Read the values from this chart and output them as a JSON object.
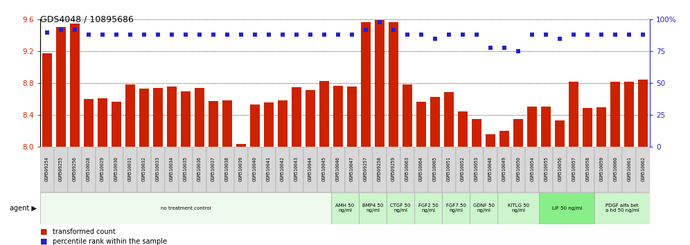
{
  "title": "GDS4048 / 10895686",
  "samples": [
    "GSM509254",
    "GSM509255",
    "GSM509256",
    "GSM510028",
    "GSM510029",
    "GSM510030",
    "GSM510031",
    "GSM510032",
    "GSM510033",
    "GSM510034",
    "GSM510035",
    "GSM510036",
    "GSM510037",
    "GSM510038",
    "GSM510039",
    "GSM510040",
    "GSM510041",
    "GSM510042",
    "GSM510043",
    "GSM510044",
    "GSM510045",
    "GSM510046",
    "GSM510047",
    "GSM509257",
    "GSM509258",
    "GSM509259",
    "GSM510063",
    "GSM510064",
    "GSM510065",
    "GSM510051",
    "GSM510052",
    "GSM510053",
    "GSM510048",
    "GSM510049",
    "GSM510050",
    "GSM510054",
    "GSM510055",
    "GSM510056",
    "GSM510057",
    "GSM510058",
    "GSM510059",
    "GSM510060",
    "GSM510061",
    "GSM510062"
  ],
  "bar_values": [
    9.18,
    9.51,
    9.55,
    8.6,
    8.61,
    8.57,
    8.79,
    8.73,
    8.74,
    8.76,
    8.7,
    8.74,
    8.58,
    8.59,
    8.04,
    8.53,
    8.56,
    8.59,
    8.75,
    8.72,
    8.83,
    8.77,
    8.76,
    9.57,
    9.59,
    9.57,
    8.79,
    8.57,
    8.63,
    8.69,
    8.45,
    8.35,
    8.16,
    8.2,
    8.35,
    8.51,
    8.51,
    8.33,
    8.82,
    8.49,
    8.5,
    8.82,
    8.82,
    8.85
  ],
  "percentile_values": [
    90,
    92,
    92,
    88,
    88,
    88,
    88,
    88,
    88,
    88,
    88,
    88,
    88,
    88,
    88,
    88,
    88,
    88,
    88,
    88,
    88,
    88,
    88,
    92,
    98,
    92,
    88,
    88,
    85,
    88,
    88,
    88,
    78,
    78,
    75,
    88,
    88,
    85,
    88,
    88,
    88,
    88,
    88,
    88
  ],
  "bar_color": "#cc2200",
  "dot_color": "#2222cc",
  "ylim_left": [
    8.0,
    9.6
  ],
  "ylim_right": [
    0,
    100
  ],
  "yticks_left": [
    8.0,
    8.4,
    8.8,
    9.2,
    9.6
  ],
  "yticks_right": [
    0,
    25,
    50,
    75,
    100
  ],
  "agents": [
    {
      "label": "no treatment control",
      "start": 0,
      "end": 21,
      "color": "#eefaee"
    },
    {
      "label": "AMH 50\nng/ml",
      "start": 21,
      "end": 23,
      "color": "#ccf5cc"
    },
    {
      "label": "BMP4 50\nng/ml",
      "start": 23,
      "end": 25,
      "color": "#ccf5cc"
    },
    {
      "label": "CTGF 50\nng/ml",
      "start": 25,
      "end": 27,
      "color": "#ccf5cc"
    },
    {
      "label": "FGF2 50\nng/ml",
      "start": 27,
      "end": 29,
      "color": "#ccf5cc"
    },
    {
      "label": "FGF7 50\nng/ml",
      "start": 29,
      "end": 31,
      "color": "#ccf5cc"
    },
    {
      "label": "GDNF 50\nng/ml",
      "start": 31,
      "end": 33,
      "color": "#ccf5cc"
    },
    {
      "label": "KITLG 50\nng/ml",
      "start": 33,
      "end": 36,
      "color": "#ccf5cc"
    },
    {
      "label": "LIF 50 ng/ml",
      "start": 36,
      "end": 40,
      "color": "#88ee88"
    },
    {
      "label": "PDGF alfa bet\na hd 50 ng/ml",
      "start": 40,
      "end": 44,
      "color": "#ccf5cc"
    }
  ],
  "background_color": "#ffffff"
}
